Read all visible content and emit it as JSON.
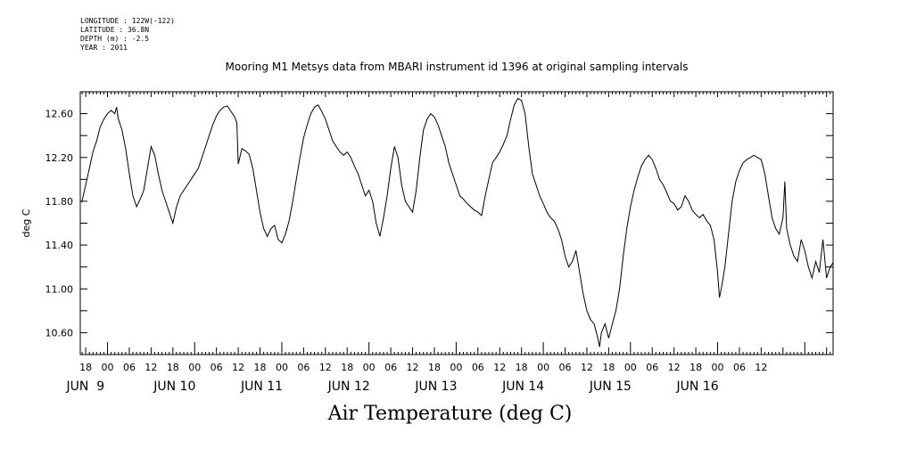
{
  "meta": {
    "longitude": "LONGITUDE : 122W(-122)",
    "latitude": "LATITUDE : 36.8N",
    "depth": "DEPTH (m) : -2.5",
    "year": "YEAR : 2011"
  },
  "title": "Mooring M1 Metsys data from MBARI instrument id 1396 at original sampling intervals",
  "caption": "Air Temperature (deg C)",
  "chart_data": {
    "type": "line",
    "title": "Mooring M1 Metsys data from MBARI instrument id 1396 at original sampling intervals",
    "ylabel": "deg C",
    "xlabel": "Air Temperature (deg C)",
    "ylim": [
      10.4,
      12.8
    ],
    "xlim": [
      -7.5,
      199.8
    ],
    "x_unit": "hours from JUN 9 00:00, 2011",
    "y_ticks": [
      "10.60",
      "11.00",
      "11.40",
      "11.80",
      "12.20",
      "12.60"
    ],
    "hour_ticks": [
      "18",
      "00",
      "06",
      "12",
      "18",
      "00",
      "06",
      "12",
      "18",
      "00",
      "06",
      "12",
      "18",
      "00",
      "06",
      "12",
      "18",
      "00",
      "06",
      "12",
      "18",
      "00",
      "06",
      "12",
      "18",
      "00",
      "06",
      "12",
      "18",
      "00",
      "06",
      "12"
    ],
    "day_labels": [
      "JUN  9",
      "JUN 10",
      "JUN 11",
      "JUN 12",
      "JUN 13",
      "JUN 14",
      "JUN 15",
      "JUN 16"
    ],
    "grid": false,
    "series": [
      {
        "values": [
          [
            -7.1,
            11.79
          ],
          [
            -6,
            11.95
          ],
          [
            -5,
            12.1
          ],
          [
            -4,
            12.25
          ],
          [
            -3,
            12.35
          ],
          [
            -2,
            12.48
          ],
          [
            -1,
            12.55
          ],
          [
            0,
            12.6
          ],
          [
            1,
            12.63
          ],
          [
            2,
            12.6
          ],
          [
            2.5,
            12.66
          ],
          [
            3,
            12.55
          ],
          [
            4,
            12.45
          ],
          [
            5,
            12.28
          ],
          [
            6,
            12.05
          ],
          [
            7,
            11.85
          ],
          [
            8,
            11.75
          ],
          [
            9,
            11.82
          ],
          [
            10,
            11.9
          ],
          [
            11,
            12.1
          ],
          [
            12,
            12.3
          ],
          [
            13,
            12.22
          ],
          [
            14,
            12.05
          ],
          [
            15,
            11.9
          ],
          [
            16,
            11.8
          ],
          [
            17,
            11.7
          ],
          [
            18,
            11.6
          ],
          [
            19,
            11.75
          ],
          [
            20,
            11.85
          ],
          [
            21,
            11.9
          ],
          [
            22,
            11.95
          ],
          [
            23,
            12.0
          ],
          [
            24,
            12.05
          ],
          [
            25,
            12.1
          ],
          [
            26,
            12.2
          ],
          [
            27,
            12.3
          ],
          [
            28,
            12.4
          ],
          [
            29,
            12.5
          ],
          [
            30,
            12.58
          ],
          [
            31,
            12.63
          ],
          [
            32,
            12.66
          ],
          [
            33,
            12.67
          ],
          [
            34,
            12.62
          ],
          [
            35,
            12.57
          ],
          [
            35.6,
            12.52
          ],
          [
            36,
            12.14
          ],
          [
            37,
            12.28
          ],
          [
            38,
            12.26
          ],
          [
            39,
            12.23
          ],
          [
            40,
            12.1
          ],
          [
            41,
            11.9
          ],
          [
            42,
            11.7
          ],
          [
            43,
            11.55
          ],
          [
            44,
            11.48
          ],
          [
            45,
            11.55
          ],
          [
            46,
            11.58
          ],
          [
            47,
            11.45
          ],
          [
            48,
            11.42
          ],
          [
            49,
            11.5
          ],
          [
            50,
            11.62
          ],
          [
            51,
            11.8
          ],
          [
            52,
            12.0
          ],
          [
            53,
            12.2
          ],
          [
            54,
            12.38
          ],
          [
            55,
            12.5
          ],
          [
            56,
            12.6
          ],
          [
            57,
            12.66
          ],
          [
            58,
            12.68
          ],
          [
            59,
            12.62
          ],
          [
            60,
            12.55
          ],
          [
            61,
            12.45
          ],
          [
            62,
            12.35
          ],
          [
            63,
            12.3
          ],
          [
            64,
            12.25
          ],
          [
            65,
            12.22
          ],
          [
            66,
            12.25
          ],
          [
            67,
            12.2
          ],
          [
            68,
            12.12
          ],
          [
            69,
            12.05
          ],
          [
            70,
            11.95
          ],
          [
            71,
            11.85
          ],
          [
            72,
            11.9
          ],
          [
            73,
            11.8
          ],
          [
            74,
            11.6
          ],
          [
            75,
            11.48
          ],
          [
            76,
            11.65
          ],
          [
            77,
            11.85
          ],
          [
            78,
            12.1
          ],
          [
            79,
            12.3
          ],
          [
            80,
            12.2
          ],
          [
            81,
            11.95
          ],
          [
            82,
            11.8
          ],
          [
            83,
            11.75
          ],
          [
            84,
            11.7
          ],
          [
            85,
            11.9
          ],
          [
            86,
            12.2
          ],
          [
            87,
            12.45
          ],
          [
            88,
            12.55
          ],
          [
            89,
            12.6
          ],
          [
            90,
            12.57
          ],
          [
            91,
            12.5
          ],
          [
            92,
            12.4
          ],
          [
            93,
            12.3
          ],
          [
            94,
            12.15
          ],
          [
            95,
            12.05
          ],
          [
            96,
            11.95
          ],
          [
            97,
            11.85
          ],
          [
            98,
            11.82
          ],
          [
            99,
            11.78
          ],
          [
            100,
            11.75
          ],
          [
            101,
            11.72
          ],
          [
            102,
            11.7
          ],
          [
            103,
            11.67
          ],
          [
            104,
            11.85
          ],
          [
            105,
            12.0
          ],
          [
            106,
            12.15
          ],
          [
            107,
            12.2
          ],
          [
            108,
            12.25
          ],
          [
            109,
            12.32
          ],
          [
            110,
            12.4
          ],
          [
            111,
            12.55
          ],
          [
            112,
            12.68
          ],
          [
            113,
            12.74
          ],
          [
            114,
            12.72
          ],
          [
            115,
            12.6
          ],
          [
            116,
            12.3
          ],
          [
            117,
            12.05
          ],
          [
            118,
            11.95
          ],
          [
            119,
            11.85
          ],
          [
            120,
            11.78
          ],
          [
            121,
            11.7
          ],
          [
            122,
            11.65
          ],
          [
            123,
            11.62
          ],
          [
            124,
            11.55
          ],
          [
            125,
            11.45
          ],
          [
            126,
            11.3
          ],
          [
            127,
            11.2
          ],
          [
            128,
            11.25
          ],
          [
            129,
            11.35
          ],
          [
            130,
            11.15
          ],
          [
            131,
            10.95
          ],
          [
            132,
            10.8
          ],
          [
            133,
            10.72
          ],
          [
            134,
            10.68
          ],
          [
            135,
            10.55
          ],
          [
            135.5,
            10.47
          ],
          [
            136,
            10.6
          ],
          [
            137,
            10.68
          ],
          [
            138,
            10.55
          ],
          [
            139,
            10.68
          ],
          [
            140,
            10.8
          ],
          [
            141,
            11.0
          ],
          [
            142,
            11.3
          ],
          [
            143,
            11.55
          ],
          [
            144,
            11.75
          ],
          [
            145,
            11.9
          ],
          [
            146,
            12.02
          ],
          [
            147,
            12.12
          ],
          [
            148,
            12.18
          ],
          [
            149,
            12.22
          ],
          [
            150,
            12.18
          ],
          [
            151,
            12.1
          ],
          [
            152,
            12.0
          ],
          [
            153,
            11.95
          ],
          [
            154,
            11.88
          ],
          [
            155,
            11.8
          ],
          [
            156,
            11.78
          ],
          [
            157,
            11.72
          ],
          [
            158,
            11.75
          ],
          [
            159,
            11.85
          ],
          [
            160,
            11.8
          ],
          [
            161,
            11.72
          ],
          [
            162,
            11.68
          ],
          [
            163,
            11.65
          ],
          [
            164,
            11.68
          ],
          [
            165,
            11.62
          ],
          [
            166,
            11.58
          ],
          [
            167,
            11.45
          ],
          [
            168,
            11.15
          ],
          [
            168.5,
            10.92
          ],
          [
            169,
            11.0
          ],
          [
            170,
            11.2
          ],
          [
            171,
            11.5
          ],
          [
            172,
            11.8
          ],
          [
            173,
            11.98
          ],
          [
            174,
            12.08
          ],
          [
            175,
            12.15
          ],
          [
            176,
            12.18
          ],
          [
            177,
            12.2
          ],
          [
            178,
            12.22
          ],
          [
            179,
            12.2
          ],
          [
            180,
            12.18
          ],
          [
            181,
            12.05
          ],
          [
            182,
            11.85
          ],
          [
            183,
            11.65
          ],
          [
            184,
            11.55
          ],
          [
            185,
            11.5
          ],
          [
            186,
            11.65
          ],
          [
            186.5,
            11.98
          ],
          [
            187,
            11.55
          ],
          [
            188,
            11.4
          ],
          [
            189,
            11.3
          ],
          [
            190,
            11.25
          ],
          [
            191,
            11.45
          ],
          [
            192,
            11.35
          ],
          [
            193,
            11.2
          ],
          [
            194,
            11.1
          ],
          [
            195,
            11.25
          ],
          [
            196,
            11.15
          ],
          [
            197,
            11.45
          ],
          [
            198,
            11.1
          ],
          [
            199,
            11.2
          ],
          [
            199.8,
            11.24
          ]
        ]
      }
    ]
  }
}
